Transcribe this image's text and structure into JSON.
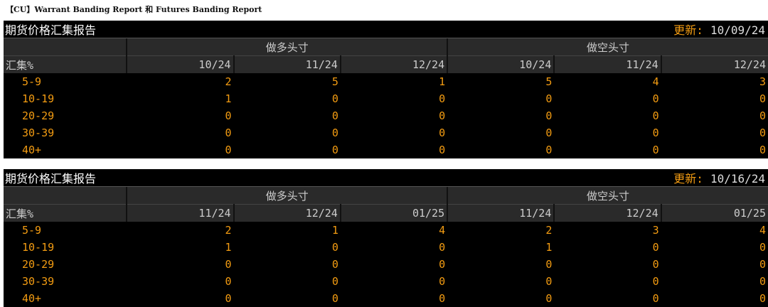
{
  "caption": "【CU】Warrant Banding Report 和 Futures Banding Report",
  "panels": [
    {
      "title": "期货价格汇集报告",
      "update_label": "更新:",
      "update_date": "10/09/24",
      "group_long": "做多头寸",
      "group_short": "做空头寸",
      "row_header": "汇集%",
      "columns": [
        "10/24",
        "11/24",
        "12/24",
        "10/24",
        "11/24",
        "12/24"
      ],
      "rows": [
        {
          "band": "5-9",
          "values": [
            "2",
            "5",
            "1",
            "5",
            "4",
            "3"
          ]
        },
        {
          "band": "10-19",
          "values": [
            "1",
            "0",
            "0",
            "0",
            "0",
            "0"
          ]
        },
        {
          "band": "20-29",
          "values": [
            "0",
            "0",
            "0",
            "0",
            "0",
            "0"
          ]
        },
        {
          "band": "30-39",
          "values": [
            "0",
            "0",
            "0",
            "0",
            "0",
            "0"
          ]
        },
        {
          "band": "40+",
          "values": [
            "0",
            "0",
            "0",
            "0",
            "0",
            "0"
          ]
        }
      ]
    },
    {
      "title": "期货价格汇集报告",
      "update_label": "更新:",
      "update_date": "10/16/24",
      "group_long": "做多头寸",
      "group_short": "做空头寸",
      "row_header": "汇集%",
      "columns": [
        "11/24",
        "12/24",
        "01/25",
        "11/24",
        "12/24",
        "01/25"
      ],
      "rows": [
        {
          "band": "5-9",
          "values": [
            "2",
            "1",
            "4",
            "2",
            "3",
            "4"
          ]
        },
        {
          "band": "10-19",
          "values": [
            "1",
            "0",
            "0",
            "1",
            "0",
            "0"
          ]
        },
        {
          "band": "20-29",
          "values": [
            "0",
            "0",
            "0",
            "0",
            "0",
            "0"
          ]
        },
        {
          "band": "30-39",
          "values": [
            "0",
            "0",
            "0",
            "0",
            "0",
            "0"
          ]
        },
        {
          "band": "40+",
          "values": [
            "0",
            "0",
            "0",
            "0",
            "0",
            "0"
          ]
        }
      ]
    }
  ],
  "colors": {
    "accent": "#f39c12",
    "background": "#000000",
    "header": "#2a2a2a"
  }
}
